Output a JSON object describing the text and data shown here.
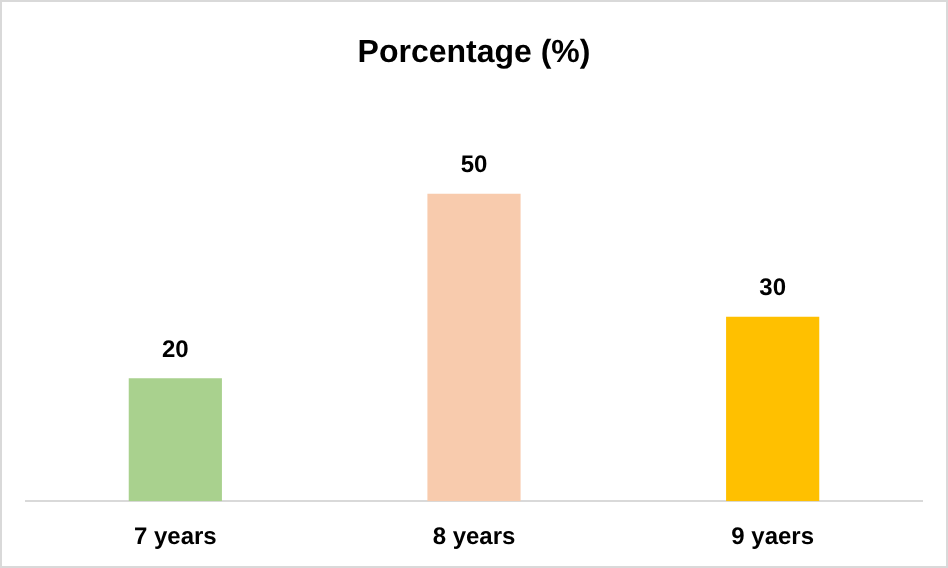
{
  "chart_data": {
    "type": "bar",
    "title": "Porcentage (%)",
    "categories": [
      "7 years",
      "8 years",
      "9 yaers"
    ],
    "values": [
      20,
      50,
      30
    ],
    "colors": [
      "#a9d18e",
      "#f8cbad",
      "#ffc000"
    ],
    "data_labels": true,
    "grid": false,
    "legend": false
  }
}
